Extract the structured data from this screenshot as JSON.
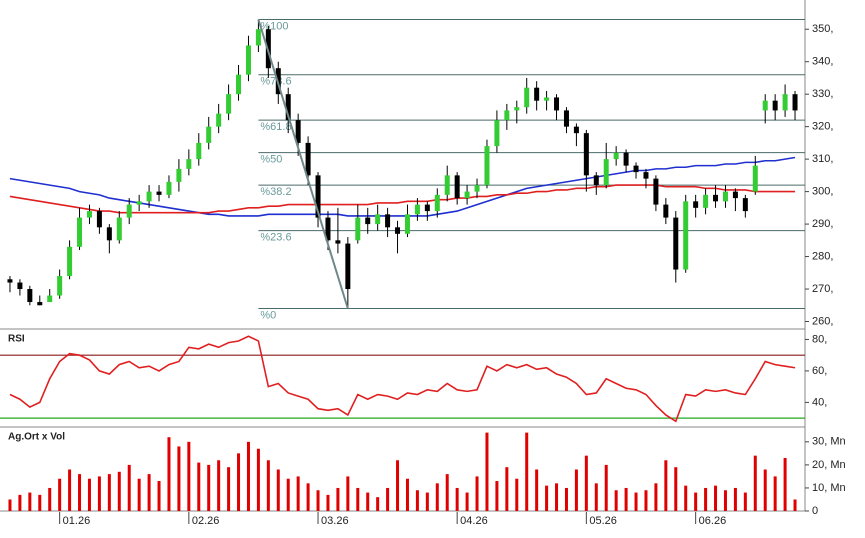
{
  "chart_data": [
    {
      "type": "candlestick",
      "categories": [
        null,
        null,
        null,
        null,
        null,
        "01.26",
        null,
        null,
        null,
        null,
        null,
        null,
        null,
        null,
        null,
        null,
        null,
        null,
        "02.26",
        null,
        null,
        null,
        null,
        null,
        null,
        null,
        null,
        null,
        null,
        null,
        null,
        "03.26",
        null,
        null,
        null,
        null,
        null,
        null,
        null,
        null,
        null,
        null,
        null,
        null,
        null,
        "04.26",
        null,
        null,
        null,
        null,
        null,
        null,
        null,
        null,
        null,
        null,
        null,
        null,
        "05.26",
        null,
        null,
        null,
        null,
        null,
        null,
        null,
        null,
        null,
        null,
        "06.26",
        null,
        null,
        null,
        null,
        null,
        null,
        null,
        null,
        null,
        null
      ],
      "open": [
        273,
        272,
        270,
        266,
        266,
        268,
        274,
        283,
        292,
        294,
        289,
        285,
        292,
        296,
        297,
        300,
        299,
        303,
        307,
        310,
        315,
        320,
        324,
        330,
        336,
        345,
        350,
        338,
        330,
        322,
        315,
        305,
        292,
        285,
        284,
        285,
        292,
        290,
        293,
        289,
        287,
        293,
        296,
        294,
        299,
        305,
        298,
        300,
        302,
        314,
        322,
        325,
        326,
        332,
        328,
        329,
        325,
        320,
        318,
        305,
        302,
        310,
        312,
        308,
        306,
        304,
        296,
        292,
        276,
        297,
        295,
        299,
        297,
        300,
        298,
        300,
        325,
        328,
        325,
        330
      ],
      "high": [
        274,
        273,
        271,
        268,
        270,
        276,
        285,
        295,
        296,
        295,
        290,
        294,
        298,
        299,
        302,
        302,
        305,
        310,
        313,
        318,
        323,
        327,
        333,
        339,
        348,
        353,
        351,
        340,
        332,
        324,
        317,
        306,
        294,
        295,
        286,
        296,
        295,
        296,
        295,
        291,
        296,
        298,
        297,
        301,
        308,
        306,
        302,
        304,
        316,
        325,
        327,
        328,
        335,
        334,
        331,
        330,
        326,
        321,
        319,
        306,
        315,
        314,
        313,
        309,
        307,
        305,
        298,
        294,
        299,
        299,
        301,
        302,
        302,
        301,
        299,
        311,
        330,
        330,
        333,
        331
      ],
      "low": [
        269,
        268,
        265,
        265,
        266,
        267,
        273,
        282,
        290,
        287,
        281,
        284,
        290,
        294,
        295,
        297,
        298,
        300,
        305,
        308,
        313,
        318,
        322,
        328,
        334,
        343,
        335,
        327,
        318,
        311,
        302,
        289,
        282,
        281,
        264,
        284,
        287,
        288,
        286,
        281,
        286,
        291,
        291,
        292,
        297,
        296,
        296,
        298,
        301,
        312,
        319,
        321,
        324,
        325,
        325,
        322,
        318,
        314,
        300,
        299,
        301,
        308,
        306,
        304,
        301,
        294,
        290,
        272,
        275,
        292,
        293,
        295,
        295,
        294,
        292,
        299,
        321,
        322,
        323,
        322
      ],
      "close": [
        272,
        270,
        266,
        265,
        268,
        274,
        283,
        292,
        294,
        289,
        285,
        292,
        296,
        297,
        300,
        299,
        303,
        307,
        310,
        315,
        320,
        324,
        330,
        336,
        345,
        350,
        338,
        330,
        322,
        315,
        305,
        292,
        285,
        284,
        270,
        292,
        290,
        293,
        289,
        287,
        293,
        296,
        294,
        299,
        305,
        298,
        300,
        302,
        314,
        322,
        325,
        326,
        332,
        328,
        329,
        325,
        320,
        318,
        305,
        302,
        310,
        312,
        308,
        306,
        304,
        296,
        292,
        276,
        297,
        295,
        299,
        297,
        300,
        298,
        294,
        308,
        328,
        325,
        330,
        325
      ],
      "up_color": "#33cc33",
      "down_color": "#000000",
      "wick_color": "#000000",
      "overlays": [
        {
          "color": "#1f2fd0",
          "values": [
            304,
            303.5,
            303,
            302.5,
            302,
            301.5,
            301,
            300,
            299.5,
            299,
            298,
            297.5,
            297,
            296.5,
            296,
            295.5,
            295,
            294.5,
            294,
            293.5,
            293,
            293,
            292.5,
            292.5,
            292.5,
            292.5,
            293,
            293,
            293,
            293,
            293,
            293,
            293,
            293,
            292.5,
            292.5,
            292.5,
            292.5,
            292.5,
            292.5,
            292.5,
            292.5,
            292.5,
            293,
            293.5,
            294,
            295,
            296,
            297,
            298,
            299,
            300,
            301,
            301.5,
            302,
            302.5,
            303,
            303.5,
            304,
            304.5,
            305,
            305.5,
            306,
            306.5,
            306.5,
            307,
            307,
            307.5,
            307.5,
            308,
            308,
            308,
            308.5,
            308.5,
            309,
            309,
            309.5,
            309.5,
            310,
            310.5
          ]
        },
        {
          "color": "#e02020",
          "values": [
            298.5,
            298,
            297.5,
            297,
            296.5,
            296,
            295.5,
            295,
            294.5,
            294,
            294,
            293.5,
            293.5,
            293.5,
            293.5,
            293.5,
            293.5,
            293.5,
            293.5,
            293.5,
            293.5,
            294,
            294,
            294.5,
            295,
            295,
            295.5,
            295.5,
            296,
            296,
            296,
            296,
            296,
            296,
            296,
            296,
            296,
            296.5,
            296.5,
            296.5,
            297,
            297,
            297,
            297.5,
            297.5,
            298,
            298,
            298.5,
            298.5,
            299,
            299,
            299.5,
            299.5,
            300,
            300,
            300.5,
            300.5,
            301,
            301,
            301.5,
            301.5,
            302,
            302,
            302,
            302,
            302,
            301.5,
            301.5,
            301.5,
            301.5,
            301,
            301,
            300.5,
            300.5,
            300.5,
            300,
            300,
            300,
            300,
            300
          ]
        }
      ],
      "fib_levels": [
        {
          "value": 353,
          "label": "%100"
        },
        {
          "value": 336,
          "label": "%78.6"
        },
        {
          "value": 322,
          "label": "%61.8"
        },
        {
          "value": 312,
          "label": "%50"
        },
        {
          "value": 302,
          "label": "%38.2"
        },
        {
          "value": 288,
          "label": "%23.6"
        },
        {
          "value": 264,
          "label": "%0"
        }
      ],
      "fib_color": "#4a6a6a",
      "trend_color": "#708888",
      "ylim": [
        258,
        359
      ],
      "yticks": [
        {
          "value": 260,
          "label": "260,"
        },
        {
          "value": 270,
          "label": "270,"
        },
        {
          "value": 280,
          "label": "280,"
        },
        {
          "value": 290,
          "label": "290,"
        },
        {
          "value": 300,
          "label": "300,"
        },
        {
          "value": 310,
          "label": "310,"
        },
        {
          "value": 320,
          "label": "320,"
        },
        {
          "value": 330,
          "label": "330,"
        },
        {
          "value": 340,
          "label": "340,"
        },
        {
          "value": 350,
          "label": "350,"
        }
      ]
    },
    {
      "type": "line",
      "title": "RSI",
      "color": "#e02020",
      "values": [
        45,
        42,
        37,
        40,
        55,
        66,
        71,
        70,
        67,
        60,
        58,
        64,
        66,
        62,
        63,
        60,
        64,
        66,
        75,
        74,
        77,
        75,
        78,
        79,
        82,
        79,
        50,
        52,
        46,
        44,
        42,
        36,
        35,
        36,
        32,
        45,
        42,
        45,
        44,
        42,
        46,
        45,
        48,
        47,
        52,
        48,
        47,
        48,
        63,
        60,
        64,
        62,
        64,
        61,
        62,
        58,
        56,
        52,
        45,
        46,
        55,
        52,
        49,
        48,
        45,
        38,
        32,
        28,
        45,
        44,
        48,
        47,
        48,
        46,
        45,
        55,
        66,
        64,
        63,
        62
      ],
      "levels": [
        {
          "value": 70,
          "color": "#8b1a1a"
        },
        {
          "value": 30,
          "color": "#22aa22"
        }
      ],
      "ylim": [
        25,
        86
      ],
      "yticks": [
        {
          "value": 40,
          "label": "40,"
        },
        {
          "value": 60,
          "label": "60,"
        },
        {
          "value": 80,
          "label": "80,"
        }
      ]
    },
    {
      "type": "bar",
      "title": "Ag.Ort x Vol",
      "color": "#e00000",
      "values": [
        5,
        7,
        8,
        7,
        10,
        14,
        18,
        16,
        14,
        15,
        16,
        17,
        20,
        14,
        16,
        13,
        32,
        28,
        30,
        21,
        20,
        22,
        19,
        25,
        30,
        27,
        22,
        18,
        14,
        15,
        12,
        9,
        7,
        10,
        15,
        10,
        8,
        6,
        10,
        22,
        14,
        9,
        8,
        12,
        16,
        10,
        8,
        15,
        34,
        13,
        19,
        14,
        34,
        18,
        11,
        12,
        10,
        18,
        24,
        12,
        20,
        9,
        10,
        8,
        9,
        12,
        22,
        19,
        11,
        8,
        10,
        11,
        9,
        10,
        8,
        24,
        18,
        15,
        23,
        5
      ],
      "ylim": [
        0,
        36
      ],
      "yticks": [
        0,
        {
          "value": 10,
          "label": "10, Mn"
        },
        {
          "value": 20,
          "label": "20, Mn"
        },
        {
          "value": 30,
          "label": "30, Mn"
        }
      ]
    }
  ]
}
